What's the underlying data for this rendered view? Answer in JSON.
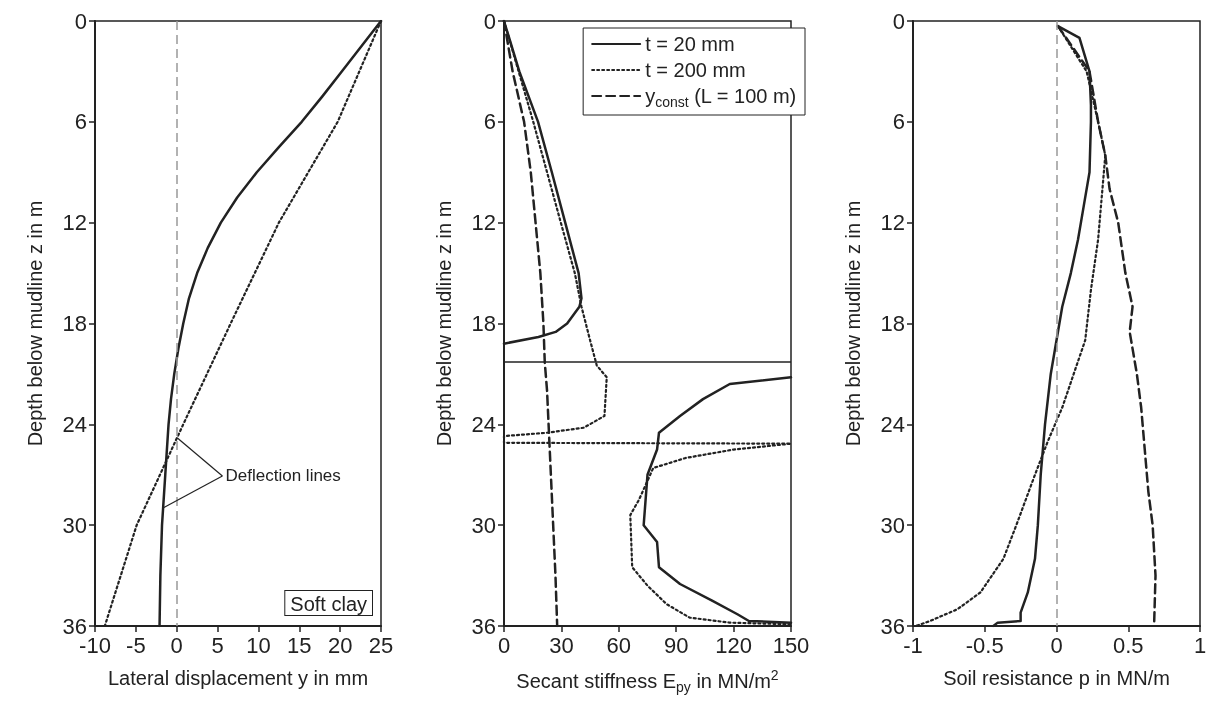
{
  "chart_data": [
    {
      "type": "line",
      "xlabel": "Lateral displacement y in mm",
      "ylabel": "Depth below mudline z in m",
      "xlim": [
        -10,
        25
      ],
      "xticks": [
        -10,
        -5,
        0,
        5,
        10,
        15,
        20,
        25
      ],
      "ylim": [
        36,
        0
      ],
      "yticks": [
        0,
        6,
        12,
        18,
        24,
        30,
        36
      ],
      "grid": false,
      "legend": false,
      "marker": "none",
      "annotations": [
        {
          "text": "Deflection lines",
          "x": 0.1,
          "y": 24.8
        },
        "Soft clay"
      ],
      "ref_lines": [
        {
          "axis": "x",
          "value": 0,
          "color": "#999999",
          "line_style": "dashed"
        }
      ],
      "series": [
        {
          "color": "#222222",
          "line_style": "solid",
          "x": [
            25,
            22.6,
            20.2,
            17.8,
            15.3,
            12.5,
            9.8,
            7.4,
            5.4,
            3.8,
            2.5,
            1.5,
            0.8,
            0.2,
            -0.3,
            -0.7,
            -1.0,
            -1.4,
            -1.8,
            -2.0,
            -2.1
          ],
          "values": [
            0,
            1.5,
            3,
            4.5,
            6,
            7.5,
            9,
            10.5,
            12,
            13.5,
            15,
            16.5,
            18,
            19.5,
            21,
            22.5,
            24,
            27,
            30,
            33,
            36
          ]
        },
        {
          "color": "#222222",
          "line_style": "dotted",
          "x": [
            25,
            19.7,
            12.5,
            6.6,
            0.8,
            -4.9,
            -8.8
          ],
          "values": [
            0,
            6,
            12,
            18,
            24,
            30,
            36
          ]
        }
      ]
    },
    {
      "type": "line",
      "xlabel": "Secant stiffness E$_{py}$ in MN/m$^{2}$",
      "ylabel": "Depth below mudline z in m",
      "xlim": [
        0,
        150
      ],
      "xticks": [
        0,
        30,
        60,
        90,
        120,
        150
      ],
      "ylim": [
        36,
        0
      ],
      "yticks": [
        0,
        6,
        12,
        18,
        24,
        30,
        36
      ],
      "grid": false,
      "legend": "top right",
      "marker": "none",
      "ref_lines": [
        {
          "axis": "y",
          "value": 20.3,
          "color": "#222222",
          "line_style": "solid"
        }
      ],
      "series": [
        {
          "name": "t = 20 mm",
          "color": "#222222",
          "line_style": "solid",
          "x": [
            0,
            8,
            17.8,
            25,
            32,
            39,
            40.5,
            39.4,
            33,
            27,
            18,
            0,
            null,
            150,
            118,
            104,
            92,
            81,
            80,
            75,
            73,
            80,
            81,
            92,
            109,
            122,
            128,
            150
          ],
          "values": [
            0,
            3,
            6,
            9,
            12,
            15,
            16.5,
            17,
            18,
            18.5,
            18.8,
            19.2,
            null,
            21.2,
            21.6,
            22.5,
            23.5,
            24.5,
            25.5,
            27,
            30,
            31,
            32.5,
            33.5,
            34.5,
            35.3,
            35.7,
            35.8
          ]
        },
        {
          "name": "t = 200 mm",
          "color": "#222222",
          "line_style": "dotted",
          "x": [
            0,
            15.3,
            22.5,
            29.7,
            37,
            40.5,
            45,
            48.5,
            53.7,
            52.5,
            41.7,
            22.5,
            0,
            0,
            150,
            120,
            95,
            78,
            70.5,
            66,
            67,
            75,
            85,
            97,
            118,
            150
          ],
          "values": [
            0,
            6,
            9,
            12,
            15,
            17,
            19,
            20.5,
            21.2,
            23.5,
            24.2,
            24.5,
            24.7,
            25.1,
            25.15,
            25.5,
            26,
            26.6,
            28.5,
            29.4,
            32.5,
            33.6,
            34.7,
            35.5,
            35.8,
            35.9
          ]
        },
        {
          "name": "y$_{const}$ (L = 100 m)",
          "color": "#222222",
          "line_style": "dashed",
          "x": [
            0,
            4.5,
            10.5,
            14,
            16.5,
            19,
            20.6,
            21.3,
            22.5,
            23.3,
            24.5,
            25.7,
            26.9,
            27.8
          ],
          "values": [
            0,
            3,
            6,
            9,
            12,
            15,
            18,
            20.3,
            22,
            24,
            27,
            30,
            33,
            36
          ]
        }
      ]
    },
    {
      "type": "line",
      "xlabel": "Soil resistance p in MN/m",
      "ylabel": "Depth below mudline z in m",
      "xlim": [
        -1,
        1
      ],
      "xticks": [
        -1,
        -0.5,
        0,
        0.5,
        1
      ],
      "ylim": [
        36,
        0
      ],
      "yticks": [
        0,
        6,
        12,
        18,
        24,
        30,
        36
      ],
      "grid": false,
      "legend": false,
      "marker": "none",
      "ref_lines": [
        {
          "axis": "x",
          "value": 0,
          "color": "#999999",
          "line_style": "dashed"
        }
      ],
      "series": [
        {
          "color": "#222222",
          "line_style": "solid",
          "x": [
            0.01,
            0.16,
            0.23,
            0.24,
            0.24,
            0.23,
            0.19,
            0.15,
            0.1,
            0.04,
            -0.01,
            -0.04,
            -0.08,
            -0.11,
            -0.13,
            -0.15,
            -0.2,
            -0.25,
            -0.25,
            -0.41,
            -0.44
          ],
          "values": [
            0.3,
            1,
            3,
            5,
            6,
            9,
            11,
            13,
            15,
            17,
            19.5,
            21,
            24,
            27,
            30,
            32,
            34,
            35.2,
            35.7,
            35.8,
            36
          ]
        },
        {
          "color": "#222222",
          "line_style": "dotted",
          "x": [
            0.01,
            0.21,
            0.29,
            0.34,
            0.32,
            0.29,
            0.24,
            0.2,
            0.12,
            0.04,
            -0.06,
            -0.15,
            -0.28,
            -0.37,
            -0.53,
            -0.69,
            -0.88,
            -0.98
          ],
          "values": [
            0.3,
            3,
            6,
            8,
            10,
            13,
            16,
            19,
            21,
            23,
            25,
            27,
            30,
            32,
            34,
            35,
            35.7,
            36
          ]
        },
        {
          "color": "#222222",
          "line_style": "dashed",
          "x": [
            0.01,
            0.23,
            0.29,
            0.34,
            0.37,
            0.43,
            0.48,
            0.53,
            0.51,
            0.56,
            0.59,
            0.62,
            0.64,
            0.67,
            0.69,
            0.68
          ],
          "values": [
            0.3,
            3,
            6,
            8,
            10,
            12,
            15,
            17,
            18.5,
            21,
            23,
            26,
            28,
            30,
            33,
            36
          ]
        }
      ]
    }
  ]
}
